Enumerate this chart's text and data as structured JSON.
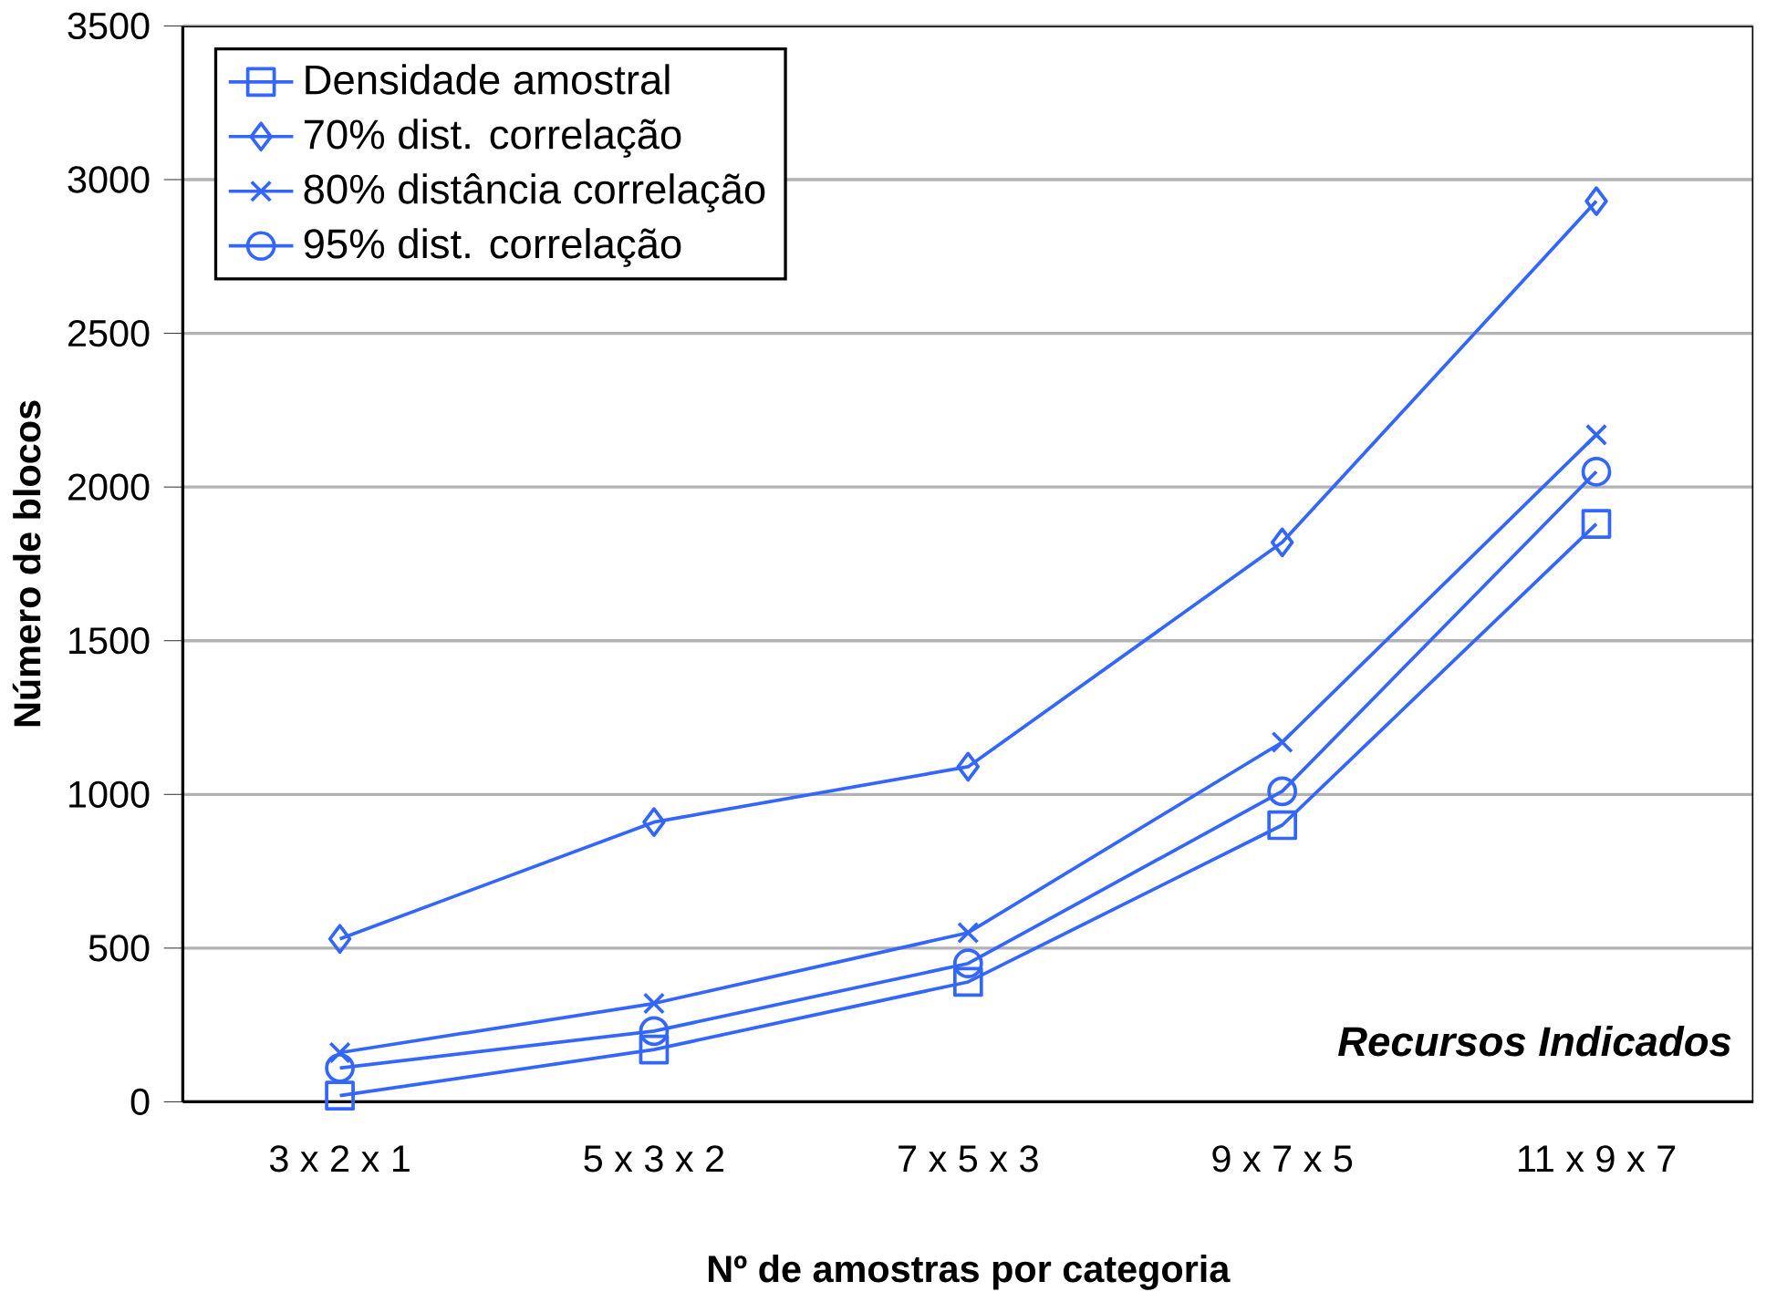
{
  "chart_data": {
    "type": "line",
    "xlabel": "Nº de amostras por categoria",
    "ylabel": "Número de blocos",
    "categories": [
      "3 x 2 x 1",
      "5 x 3 x 2",
      "7 x 5 x 3",
      "9 x 7 x 5",
      "11 x 9 x 7"
    ],
    "series": [
      {
        "name": "Densidade amostral",
        "color": "#3366ff",
        "marker": "square",
        "values": [
          20,
          170,
          390,
          900,
          1880
        ]
      },
      {
        "name": "70% dist. correlação",
        "color": "#3366ff",
        "marker": "diamond",
        "values": [
          530,
          910,
          1090,
          1820,
          2930
        ]
      },
      {
        "name": "80% distância correlação",
        "color": "#3366ff",
        "marker": "cross",
        "values": [
          160,
          320,
          550,
          1170,
          2170
        ]
      },
      {
        "name": "95% dist. correlação",
        "color": "#3366ff",
        "marker": "circle",
        "values": [
          110,
          230,
          450,
          1010,
          2050
        ]
      }
    ],
    "ylim": [
      0,
      3500
    ],
    "yticks": [
      0,
      500,
      1000,
      1500,
      2000,
      2500,
      3000,
      3500
    ],
    "grid": "y",
    "legend": "top left",
    "line_style": "solid",
    "annotations": [
      {
        "text": "**Recursos Indicados**"
      }
    ]
  }
}
